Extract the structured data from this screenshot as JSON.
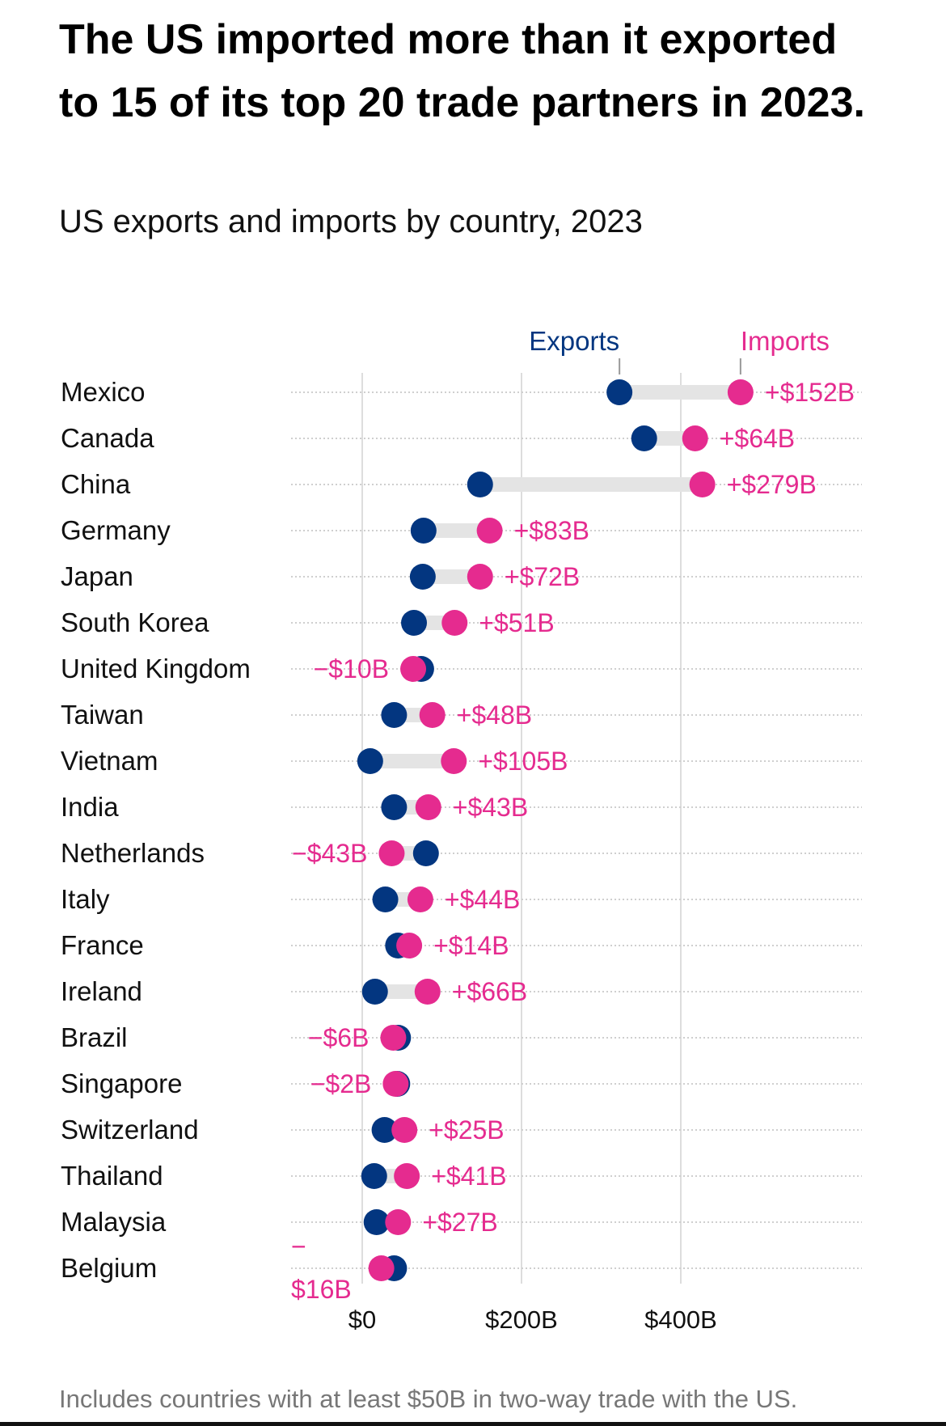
{
  "title": "The US imported more than it exported to 15 of its top 20 trade partners in 2023.",
  "subtitle": "US exports and imports by country, 2023",
  "footnote": "Includes countries with at least $50B in two-way trade with the US.",
  "colors": {
    "exports": "#033680",
    "imports": "#e52b8f",
    "connector": "#e4e4e4",
    "grid": "#dddddd"
  },
  "chart_data": {
    "type": "dumbbell",
    "title": "US exports and imports by country, 2023",
    "legend": {
      "exports": "Exports",
      "imports": "Imports",
      "placement": "top"
    },
    "xlim": [
      0,
      620
    ],
    "xticks": [
      0,
      200,
      400
    ],
    "xtick_labels": [
      "$0",
      "$200B",
      "$400B"
    ],
    "unit": "billion USD",
    "rows": [
      {
        "country": "Mexico",
        "exports": 323,
        "imports": 475,
        "label": "+$152B"
      },
      {
        "country": "Canada",
        "exports": 354,
        "imports": 418,
        "label": "+$64B"
      },
      {
        "country": "China",
        "exports": 148,
        "imports": 427,
        "label": "+$279B"
      },
      {
        "country": "Germany",
        "exports": 77,
        "imports": 160,
        "label": "+$83B"
      },
      {
        "country": "Japan",
        "exports": 76,
        "imports": 148,
        "label": "+$72B"
      },
      {
        "country": "South Korea",
        "exports": 65,
        "imports": 116,
        "label": "+$51B"
      },
      {
        "country": "United Kingdom",
        "exports": 74,
        "imports": 64,
        "label": "−$10B"
      },
      {
        "country": "Taiwan",
        "exports": 40,
        "imports": 88,
        "label": "+$48B"
      },
      {
        "country": "Vietnam",
        "exports": 10,
        "imports": 115,
        "label": "+$105B"
      },
      {
        "country": "India",
        "exports": 40,
        "imports": 83,
        "label": "+$43B"
      },
      {
        "country": "Netherlands",
        "exports": 80,
        "imports": 37,
        "label": "−$43B"
      },
      {
        "country": "Italy",
        "exports": 29,
        "imports": 73,
        "label": "+$44B"
      },
      {
        "country": "France",
        "exports": 45,
        "imports": 59,
        "label": "+$14B"
      },
      {
        "country": "Ireland",
        "exports": 16,
        "imports": 82,
        "label": "+$66B"
      },
      {
        "country": "Brazil",
        "exports": 45,
        "imports": 39,
        "label": "−$6B"
      },
      {
        "country": "Singapore",
        "exports": 44,
        "imports": 42,
        "label": "−$2B"
      },
      {
        "country": "Switzerland",
        "exports": 28,
        "imports": 53,
        "label": "+$25B"
      },
      {
        "country": "Thailand",
        "exports": 15,
        "imports": 56,
        "label": "+$41B"
      },
      {
        "country": "Malaysia",
        "exports": 18,
        "imports": 45,
        "label": "+$27B"
      },
      {
        "country": "Belgium",
        "exports": 40,
        "imports": 24,
        "label": "−$16B"
      }
    ]
  }
}
